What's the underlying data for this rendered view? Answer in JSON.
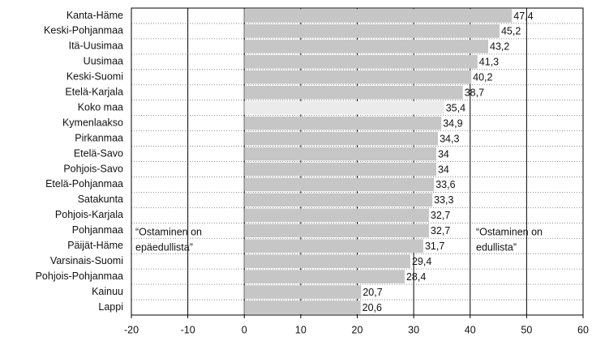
{
  "chart_data": {
    "type": "barh",
    "categories": [
      "Kanta-Häme",
      "Keski-Pohjanmaa",
      "Itä-Uusimaa",
      "Uusimaa",
      "Keski-Suomi",
      "Etelä-Karjala",
      "Koko maa",
      "Kymenlaakso",
      "Pirkanmaa",
      "Etelä-Savo",
      "Pohjois-Savo",
      "Etelä-Pohjanmaa",
      "Satakunta",
      "Pohjois-Karjala",
      "Pohjanmaa",
      "Päijät-Häme",
      "Varsinais-Suomi",
      "Pohjois-Pohjanmaa",
      "Kainuu",
      "Lappi"
    ],
    "values": [
      47.4,
      45.2,
      43.2,
      41.3,
      40.2,
      38.7,
      35.4,
      34.9,
      34.3,
      34,
      34,
      33.6,
      33.3,
      32.7,
      32.7,
      31.7,
      29.4,
      28.4,
      20.7,
      20.6
    ],
    "value_labels": [
      "47,4",
      "45,2",
      "43,2",
      "41,3",
      "40,2",
      "38,7",
      "35,4",
      "34,9",
      "34,3",
      "34",
      "34",
      "33,6",
      "33,3",
      "32,7",
      "32,7",
      "31,7",
      "29,4",
      "28,4",
      "20,7",
      "20,6"
    ],
    "colors": [
      "#c6c6c6",
      "#c6c6c6",
      "#c6c6c6",
      "#c6c6c6",
      "#c6c6c6",
      "#c6c6c6",
      "#ebebeb",
      "#c6c6c6",
      "#c6c6c6",
      "#c6c6c6",
      "#c6c6c6",
      "#c6c6c6",
      "#c6c6c6",
      "#c6c6c6",
      "#c6c6c6",
      "#c6c6c6",
      "#c6c6c6",
      "#c6c6c6",
      "#c6c6c6",
      "#c6c6c6"
    ],
    "xlim": [
      -20,
      60
    ],
    "xticks": [
      -20,
      -10,
      0,
      10,
      20,
      30,
      40,
      50,
      60
    ],
    "grid": true,
    "annotations": [
      [
        "“Ostaminen on",
        "epäedullista”"
      ],
      [
        "“Ostaminen on",
        "edullista”"
      ]
    ]
  }
}
